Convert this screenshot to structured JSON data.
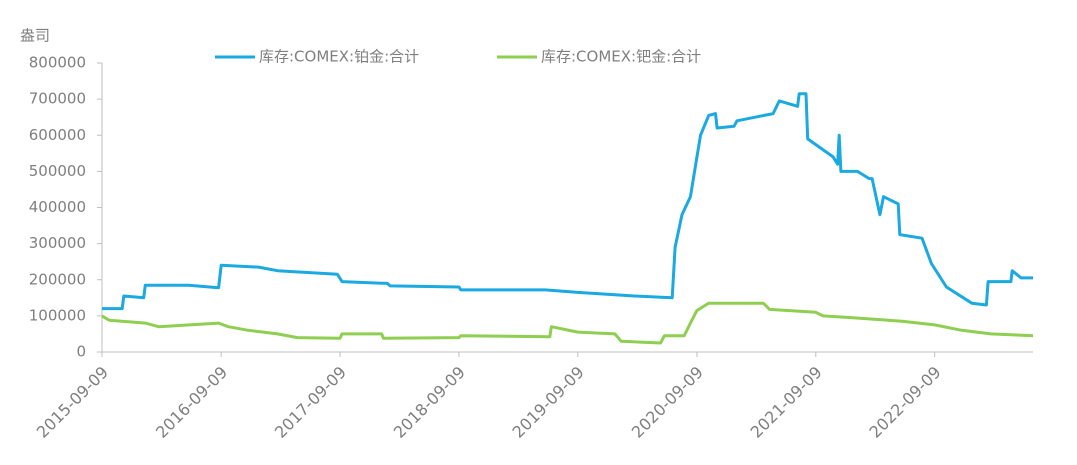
{
  "chart_data": {
    "type": "line",
    "y_unit": "盎司",
    "xlim": [
      "2015-09-09",
      "2023-07-08"
    ],
    "xticks": [
      "2015-09-09",
      "2016-09-09",
      "2017-09-09",
      "2018-09-09",
      "2019-09-09",
      "2020-09-09",
      "2021-09-09",
      "2022-09-09"
    ],
    "ylim": [
      0,
      800000
    ],
    "yticks": [
      0,
      100000,
      200000,
      300000,
      400000,
      500000,
      600000,
      700000,
      800000
    ],
    "legend": "top",
    "series": [
      {
        "name": "库存:COMEX:铂金:合计",
        "color": "#1aa9e0",
        "x": [
          "2015-09-09",
          "2015-11-10",
          "2015-11-15",
          "2016-01-15",
          "2016-01-20",
          "2016-06-01",
          "2016-09-01",
          "2016-09-09",
          "2017-01-01",
          "2017-03-01",
          "2017-09-01",
          "2017-09-15",
          "2018-02-01",
          "2018-02-10",
          "2018-09-09",
          "2018-09-15",
          "2019-06-01",
          "2019-09-09",
          "2020-03-01",
          "2020-06-25",
          "2020-07-04",
          "2020-07-25",
          "2020-08-20",
          "2020-09-20",
          "2020-10-15",
          "2020-11-05",
          "2020-11-10",
          "2021-01-01",
          "2021-01-10",
          "2021-05-01",
          "2021-05-20",
          "2021-07-15",
          "2021-07-20",
          "2021-08-10",
          "2021-08-15",
          "2021-11-01",
          "2021-11-15",
          "2021-11-20",
          "2021-11-25",
          "2022-01-15",
          "2022-02-20",
          "2022-03-01",
          "2022-03-25",
          "2022-04-05",
          "2022-05-20",
          "2022-05-25",
          "2022-08-01",
          "2022-08-30",
          "2022-10-15",
          "2023-01-01",
          "2023-02-15",
          "2023-02-20",
          "2023-05-01",
          "2023-05-05",
          "2023-06-01",
          "2023-07-08"
        ],
        "values": [
          120000,
          120000,
          155000,
          150000,
          185000,
          185000,
          178000,
          240000,
          235000,
          225000,
          215000,
          195000,
          190000,
          183000,
          180000,
          172000,
          172000,
          165000,
          155000,
          150000,
          290000,
          380000,
          430000,
          600000,
          655000,
          660000,
          620000,
          625000,
          640000,
          660000,
          695000,
          680000,
          715000,
          715000,
          590000,
          540000,
          520000,
          600000,
          500000,
          500000,
          480000,
          480000,
          380000,
          430000,
          410000,
          325000,
          315000,
          245000,
          180000,
          135000,
          130000,
          195000,
          195000,
          225000,
          205000,
          205000
        ]
      },
      {
        "name": "库存:COMEX:钯金:合计",
        "color": "#8ece50",
        "x": [
          "2015-09-09",
          "2015-10-01",
          "2016-01-20",
          "2016-03-01",
          "2016-09-01",
          "2016-10-01",
          "2016-12-01",
          "2017-03-01",
          "2017-05-01",
          "2017-09-09",
          "2017-09-15",
          "2018-01-15",
          "2018-01-20",
          "2018-09-09",
          "2018-09-15",
          "2019-06-15",
          "2019-06-20",
          "2019-09-09",
          "2020-01-01",
          "2020-01-20",
          "2020-05-20",
          "2020-06-01",
          "2020-08-01",
          "2020-08-20",
          "2020-09-09",
          "2020-10-15",
          "2021-04-01",
          "2021-04-20",
          "2021-09-09",
          "2021-10-01",
          "2022-01-01",
          "2022-06-01",
          "2022-09-09",
          "2022-12-01",
          "2023-03-01",
          "2023-07-08"
        ],
        "values": [
          100000,
          88000,
          80000,
          70000,
          80000,
          70000,
          60000,
          50000,
          40000,
          38000,
          50000,
          50000,
          38000,
          40000,
          45000,
          42000,
          70000,
          55000,
          50000,
          30000,
          25000,
          45000,
          45000,
          80000,
          115000,
          135000,
          135000,
          118000,
          110000,
          100000,
          95000,
          85000,
          75000,
          60000,
          50000,
          45000
        ]
      }
    ]
  }
}
